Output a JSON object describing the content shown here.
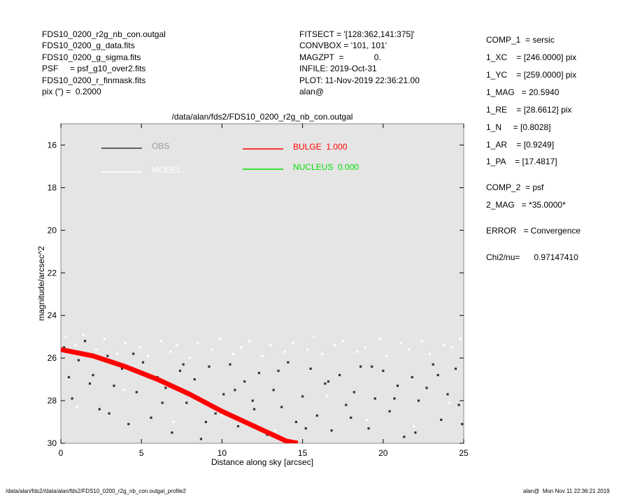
{
  "header": {
    "left": [
      "FDS10_0200_r2g_nb_con.outgal",
      "FDS10_0200_g_data.fits",
      "FDS10_0200_g_sigma.fits",
      "PSF     = psf_g10_over2.fits",
      "FDS10_0200_r_finmask.fits",
      "pix (\") =  0.2000"
    ],
    "middle": [
      "FITSECT = '[128:362,141:375]'",
      "CONVBOX = '101, 101'",
      "MAGZPT  =             0.",
      "INFILE: 2019-Oct-31",
      "PLOT: 11-Nov-2019 22:36:21.00",
      "alan@"
    ]
  },
  "parameters": [
    "COMP_1  = sersic",
    "1_XC    = [246.0000] pix",
    "1_YC    = [259.0000] pix",
    "1_MAG   = 20.5940",
    "1_RE    = [28.6612] pix",
    "1_N     = [0.8028]",
    "1_AR    = [0.9249]",
    "1_PA    = [17.4817]",
    "COMP_2  = psf",
    "2_MAG   = *35.0000*",
    "ERROR   = Convergence",
    "Chi2/nu=      0.97147410"
  ],
  "footer": {
    "left": "/data/alan/fds2//data/alan/fds2/FDS10_0200_r2g_nb_con.outgal_profile2",
    "right": "alan@  Mon Nov 11 22:36:21 2019"
  },
  "chart_data": {
    "type": "scatter",
    "title": "/data/alan/fds2/FDS10_0200_r2g_nb_con.outgal",
    "x_label": "Distance along sky [arcsec]",
    "y_label": "magnitude/arcsec^2",
    "xlim": [
      0,
      25
    ],
    "ylim": [
      15,
      30
    ],
    "invert_y": true,
    "xticks": [
      0,
      5,
      10,
      15,
      20,
      25
    ],
    "yticks": [
      16,
      18,
      20,
      22,
      24,
      26,
      28,
      30
    ],
    "background": "#e5e5e5",
    "series": [
      {
        "name": "OBS",
        "color": "#333333",
        "kind": "points",
        "x": [
          0.2,
          0.7,
          1.1,
          1.5,
          2.0,
          2.4,
          2.9,
          3.3,
          3.8,
          4.2,
          4.7,
          5.1,
          5.6,
          6.0,
          6.5,
          6.9,
          7.4,
          7.8,
          8.3,
          8.7,
          9.2,
          9.6,
          10.1,
          10.5,
          11.0,
          11.4,
          11.9,
          12.3,
          12.8,
          13.2,
          13.7,
          14.1,
          14.6,
          15.0,
          15.5,
          15.9,
          16.4,
          16.8,
          17.3,
          17.7,
          18.2,
          18.6,
          19.1,
          19.5,
          20.0,
          20.4,
          20.9,
          21.3,
          21.8,
          22.2,
          22.7,
          23.1,
          23.6,
          24.0,
          24.5,
          24.9,
          0.5,
          1.8,
          3.0,
          4.5,
          6.3,
          7.6,
          9.0,
          10.8,
          12.0,
          13.5,
          15.2,
          16.6,
          18.0,
          19.3,
          20.7,
          22.0,
          23.4,
          24.7
        ],
        "values": [
          25.5,
          27.9,
          26.1,
          25.2,
          26.8,
          28.4,
          25.9,
          27.3,
          26.5,
          29.1,
          27.6,
          26.2,
          28.8,
          26.9,
          27.4,
          29.5,
          26.6,
          28.1,
          27.0,
          29.8,
          26.4,
          28.6,
          27.7,
          26.3,
          29.2,
          27.1,
          28.0,
          26.7,
          29.6,
          27.5,
          28.3,
          26.2,
          29.0,
          27.8,
          26.5,
          28.7,
          27.2,
          29.4,
          26.8,
          28.2,
          27.6,
          26.4,
          29.3,
          27.9,
          26.6,
          28.5,
          27.3,
          29.7,
          26.9,
          28.0,
          27.4,
          26.3,
          28.9,
          27.7,
          26.5,
          29.1,
          26.9,
          27.2,
          28.6,
          25.8,
          28.1,
          26.3,
          29.0,
          27.5,
          28.4,
          26.6,
          29.3,
          27.1,
          28.8,
          26.4,
          27.9,
          29.5,
          26.8,
          28.2
        ]
      },
      {
        "name": "MODEL",
        "color": "#ffffff",
        "kind": "points",
        "x": [
          0.3,
          0.9,
          1.4,
          2.2,
          2.7,
          3.5,
          4.0,
          4.9,
          5.4,
          6.2,
          6.8,
          7.2,
          8.0,
          8.5,
          9.4,
          9.9,
          10.7,
          11.2,
          11.7,
          12.5,
          13.0,
          13.9,
          14.4,
          15.3,
          15.7,
          16.2,
          17.0,
          17.5,
          18.4,
          18.9,
          19.8,
          20.2,
          21.1,
          21.6,
          22.4,
          22.9,
          23.8,
          24.3,
          24.8,
          1.0,
          3.9,
          7.0,
          10.0,
          13.3,
          16.5,
          19.0,
          21.9,
          24.1
        ],
        "values": [
          25.0,
          25.4,
          24.9,
          25.6,
          25.1,
          25.8,
          25.3,
          25.5,
          25.9,
          25.2,
          25.7,
          25.4,
          26.0,
          25.3,
          25.6,
          25.1,
          25.8,
          25.5,
          25.2,
          25.9,
          25.4,
          25.7,
          25.3,
          25.6,
          25.0,
          25.8,
          25.4,
          25.2,
          25.7,
          25.5,
          25.1,
          25.9,
          25.3,
          25.6,
          25.2,
          25.8,
          25.4,
          25.5,
          25.1,
          28.3,
          27.5,
          29.0,
          28.7,
          29.4,
          27.8,
          28.9,
          29.2,
          28.1
        ]
      },
      {
        "name": "BULGE  1.000",
        "color": "#ff0000",
        "kind": "line",
        "x": [
          0,
          2,
          4,
          6,
          8,
          10,
          12,
          14,
          14.7
        ],
        "values": [
          25.6,
          25.9,
          26.4,
          27.0,
          27.7,
          28.5,
          29.2,
          29.9,
          30
        ]
      },
      {
        "name": "NUCLEUS  0.000",
        "color": "#00dd00",
        "kind": "line",
        "x": [],
        "values": []
      }
    ]
  }
}
